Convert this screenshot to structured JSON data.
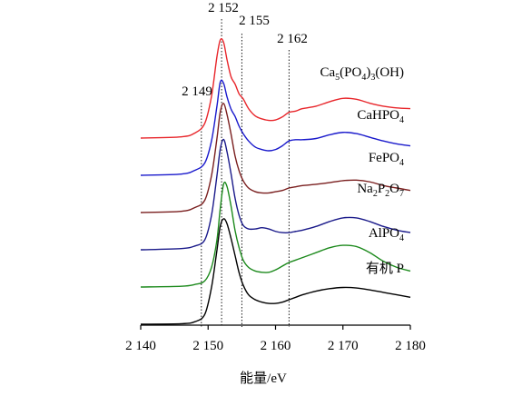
{
  "chart_data": {
    "type": "line",
    "xlabel": "能量/eV",
    "xlim": [
      2140,
      2180
    ],
    "x_ticks": [
      {
        "value": 2140,
        "label": "2 140"
      },
      {
        "value": 2150,
        "label": "2 150"
      },
      {
        "value": 2160,
        "label": "2 160"
      },
      {
        "value": 2170,
        "label": "2 170"
      },
      {
        "value": 2180,
        "label": "2 180"
      }
    ],
    "reference_lines": [
      {
        "value": 2149,
        "label": "2 149"
      },
      {
        "value": 2152,
        "label": "2 152"
      },
      {
        "value": 2155,
        "label": "2 155"
      },
      {
        "value": 2162,
        "label": "2 162"
      }
    ],
    "series": [
      {
        "name": "Ca5(PO4)3(OH)",
        "label_parts": [
          {
            "t": "Ca",
            "sub": false
          },
          {
            "t": "5",
            "sub": true
          },
          {
            "t": "(PO",
            "sub": false
          },
          {
            "t": "4",
            "sub": true
          },
          {
            "t": ")",
            "sub": false
          },
          {
            "t": "3",
            "sub": true
          },
          {
            "t": "(OH)",
            "sub": false
          }
        ],
        "color": "#e8262b",
        "x": [
          2140,
          2146,
          2148,
          2149.5,
          2150.5,
          2151.3,
          2151.8,
          2152.3,
          2152.8,
          2153.4,
          2154,
          2154.6,
          2155.2,
          2156,
          2157,
          2158,
          2159,
          2160,
          2161,
          2162,
          2163,
          2164,
          2166,
          2168,
          2170,
          2172,
          2174,
          2176,
          2178,
          2180
        ],
        "y": [
          0.67,
          0.675,
          0.69,
          0.73,
          0.84,
          1.0,
          1.07,
          1.06,
          0.99,
          0.92,
          0.89,
          0.85,
          0.83,
          0.79,
          0.76,
          0.748,
          0.742,
          0.744,
          0.756,
          0.775,
          0.78,
          0.79,
          0.8,
          0.818,
          0.832,
          0.828,
          0.812,
          0.8,
          0.793,
          0.79
        ]
      },
      {
        "name": "CaHPO4",
        "label_parts": [
          {
            "t": "CaHPO",
            "sub": false
          },
          {
            "t": "4",
            "sub": true
          }
        ],
        "color": "#1a1acc",
        "x": [
          2140,
          2146,
          2148,
          2149.5,
          2150.5,
          2151.3,
          2151.8,
          2152.3,
          2152.8,
          2153.4,
          2154,
          2154.6,
          2155.2,
          2156,
          2157,
          2158,
          2159,
          2160,
          2161,
          2162,
          2163,
          2164,
          2166,
          2168,
          2170,
          2172,
          2174,
          2176,
          2178,
          2180
        ],
        "y": [
          0.52,
          0.525,
          0.54,
          0.57,
          0.66,
          0.8,
          0.9,
          0.895,
          0.84,
          0.79,
          0.76,
          0.72,
          0.69,
          0.66,
          0.635,
          0.625,
          0.62,
          0.625,
          0.64,
          0.66,
          0.665,
          0.665,
          0.67,
          0.685,
          0.695,
          0.69,
          0.675,
          0.66,
          0.648,
          0.64
        ]
      },
      {
        "name": "FePO4",
        "label_parts": [
          {
            "t": "FePO",
            "sub": false
          },
          {
            "t": "4",
            "sub": true
          }
        ],
        "color": "#7a1f1f",
        "x": [
          2140,
          2146,
          2148,
          2149.5,
          2150.5,
          2151.3,
          2151.8,
          2152.3,
          2152.8,
          2153.4,
          2154,
          2154.6,
          2155.2,
          2156,
          2157,
          2158,
          2159,
          2160,
          2161,
          2162,
          2163,
          2164,
          2166,
          2168,
          2170,
          2172,
          2174,
          2176,
          2178,
          2180
        ],
        "y": [
          0.39,
          0.395,
          0.41,
          0.44,
          0.54,
          0.69,
          0.8,
          0.835,
          0.79,
          0.71,
          0.62,
          0.56,
          0.52,
          0.49,
          0.475,
          0.47,
          0.47,
          0.475,
          0.48,
          0.49,
          0.495,
          0.5,
          0.505,
          0.512,
          0.52,
          0.522,
          0.515,
          0.5,
          0.49,
          0.48
        ]
      },
      {
        "name": "Na2P2O7",
        "label_parts": [
          {
            "t": "Na",
            "sub": false
          },
          {
            "t": "2",
            "sub": true
          },
          {
            "t": "P",
            "sub": false
          },
          {
            "t": "2",
            "sub": true
          },
          {
            "t": "O",
            "sub": false
          },
          {
            "t": "7",
            "sub": true
          }
        ],
        "color": "#1a1a8a",
        "x": [
          2140,
          2146,
          2148,
          2149.5,
          2150.5,
          2151.3,
          2151.8,
          2152.3,
          2152.8,
          2153.4,
          2154,
          2154.6,
          2155.2,
          2156,
          2157,
          2158,
          2159,
          2160,
          2161,
          2162,
          2163,
          2164,
          2166,
          2168,
          2170,
          2172,
          2174,
          2176,
          2178,
          2180
        ],
        "y": [
          0.26,
          0.265,
          0.275,
          0.3,
          0.4,
          0.56,
          0.67,
          0.71,
          0.66,
          0.57,
          0.47,
          0.4,
          0.36,
          0.345,
          0.345,
          0.35,
          0.345,
          0.335,
          0.33,
          0.33,
          0.335,
          0.34,
          0.355,
          0.375,
          0.39,
          0.39,
          0.375,
          0.355,
          0.34,
          0.33
        ]
      },
      {
        "name": "AlPO4",
        "label_parts": [
          {
            "t": "AlPO",
            "sub": false
          },
          {
            "t": "4",
            "sub": true
          }
        ],
        "color": "#1d8a1d",
        "x": [
          2140,
          2146,
          2148,
          2149.5,
          2150.5,
          2151.3,
          2151.8,
          2152.3,
          2152.8,
          2153.4,
          2154,
          2154.6,
          2155.2,
          2156,
          2157,
          2158,
          2159,
          2160,
          2161,
          2162,
          2163,
          2164,
          2166,
          2168,
          2170,
          2172,
          2174,
          2176,
          2178,
          2180
        ],
        "y": [
          0.13,
          0.133,
          0.14,
          0.155,
          0.21,
          0.32,
          0.45,
          0.55,
          0.54,
          0.46,
          0.36,
          0.29,
          0.24,
          0.21,
          0.195,
          0.19,
          0.19,
          0.2,
          0.215,
          0.23,
          0.24,
          0.25,
          0.27,
          0.29,
          0.3,
          0.295,
          0.27,
          0.235,
          0.21,
          0.195
        ]
      },
      {
        "name": "有机 P",
        "label_parts": [
          {
            "t": "有机 P",
            "sub": false
          }
        ],
        "color": "#000000",
        "x": [
          2140,
          2146,
          2148,
          2149.5,
          2150.5,
          2151.3,
          2151.8,
          2152.3,
          2152.8,
          2153.4,
          2154,
          2154.6,
          2155.2,
          2156,
          2157,
          2158,
          2159,
          2160,
          2161,
          2162,
          2163,
          2164,
          2166,
          2168,
          2170,
          2172,
          2174,
          2176,
          2178,
          2180
        ],
        "y": [
          0.0,
          0.002,
          0.01,
          0.04,
          0.15,
          0.3,
          0.4,
          0.43,
          0.41,
          0.35,
          0.28,
          0.21,
          0.16,
          0.12,
          0.1,
          0.09,
          0.085,
          0.085,
          0.09,
          0.1,
          0.11,
          0.12,
          0.135,
          0.145,
          0.15,
          0.148,
          0.14,
          0.13,
          0.12,
          0.11
        ]
      }
    ]
  }
}
